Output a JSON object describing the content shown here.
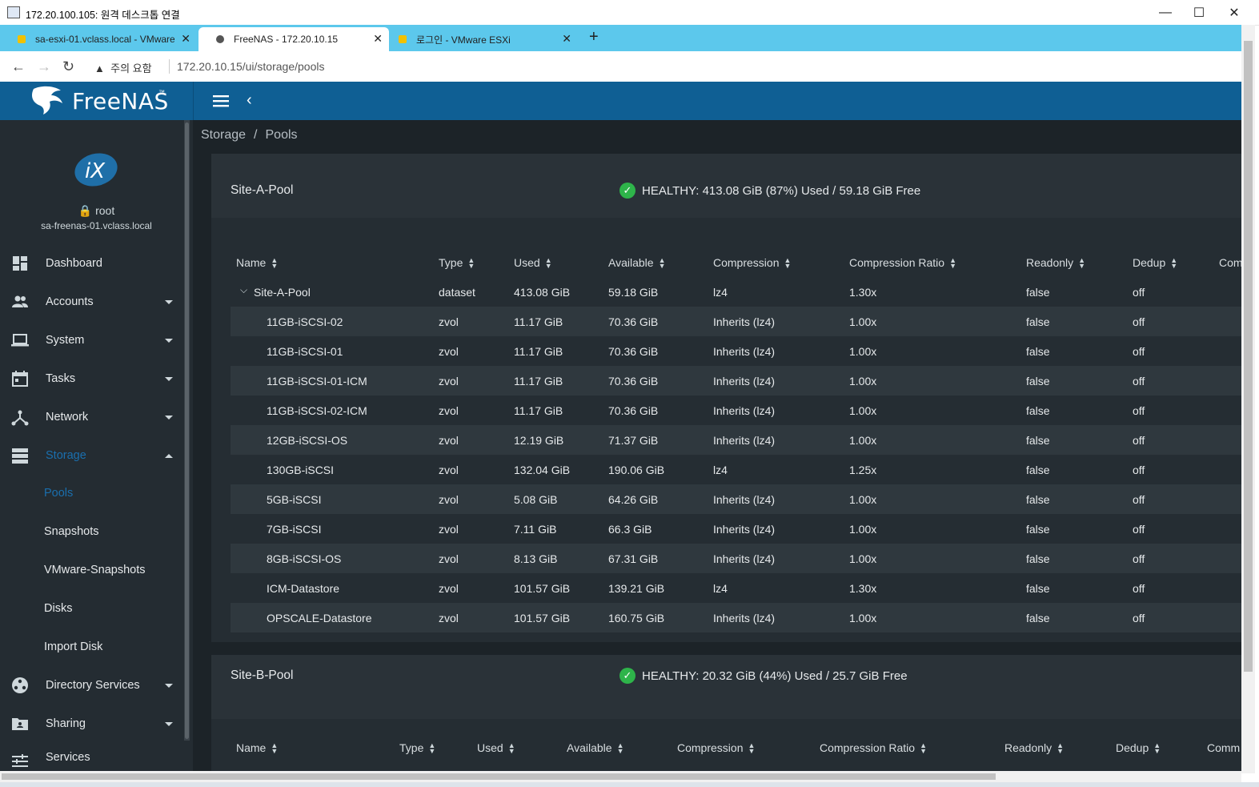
{
  "rdp": {
    "title": "172.20.100.105: 원격 데스크톱 연결"
  },
  "tabs": [
    {
      "label": "sa-esxi-01.vclass.local - VMware",
      "active": false
    },
    {
      "label": "FreeNAS - 172.20.10.15",
      "active": true
    },
    {
      "label": "로그인 - VMware ESXi",
      "active": false
    }
  ],
  "address": {
    "warning": "주의 요함",
    "url": "172.20.10.15/ui/storage/pools"
  },
  "header": {
    "logo": "FreeNAS",
    "logo_tm": "™"
  },
  "user": {
    "name": "root",
    "host": "sa-freenas-01.vclass.local"
  },
  "sidebar": {
    "items": [
      {
        "label": "Dashboard",
        "icon": "dashboard-icon"
      },
      {
        "label": "Accounts",
        "icon": "people-icon"
      },
      {
        "label": "System",
        "icon": "laptop-icon"
      },
      {
        "label": "Tasks",
        "icon": "calendar-icon"
      },
      {
        "label": "Network",
        "icon": "network-icon"
      },
      {
        "label": "Storage",
        "icon": "storage-icon"
      },
      {
        "label": "Directory Services",
        "icon": "directory-icon"
      },
      {
        "label": "Sharing",
        "icon": "folder-share-icon"
      },
      {
        "label": "Services",
        "icon": "tune-icon"
      }
    ],
    "storage_sub": [
      "Pools",
      "Snapshots",
      "VMware-Snapshots",
      "Disks",
      "Import Disk"
    ]
  },
  "breadcrumb": {
    "parent": "Storage",
    "sep": "/",
    "current": "Pools"
  },
  "pools": [
    {
      "name": "Site-A-Pool",
      "status": "HEALTHY: 413.08 GiB (87%) Used / 59.18 GiB Free",
      "columns": [
        "Name",
        "Type",
        "Used",
        "Available",
        "Compression",
        "Compression Ratio",
        "Readonly",
        "Dedup",
        "Com"
      ],
      "rows": [
        [
          "Site-A-Pool",
          "dataset",
          "413.08 GiB",
          "59.18 GiB",
          "lz4",
          "1.30x",
          "false",
          "off"
        ],
        [
          "11GB-iSCSI-02",
          "zvol",
          "11.17 GiB",
          "70.36 GiB",
          "Inherits (lz4)",
          "1.00x",
          "false",
          "off"
        ],
        [
          "11GB-iSCSI-01",
          "zvol",
          "11.17 GiB",
          "70.36 GiB",
          "Inherits (lz4)",
          "1.00x",
          "false",
          "off"
        ],
        [
          "11GB-iSCSI-01-ICM",
          "zvol",
          "11.17 GiB",
          "70.36 GiB",
          "Inherits (lz4)",
          "1.00x",
          "false",
          "off"
        ],
        [
          "11GB-iSCSI-02-ICM",
          "zvol",
          "11.17 GiB",
          "70.36 GiB",
          "Inherits (lz4)",
          "1.00x",
          "false",
          "off"
        ],
        [
          "12GB-iSCSI-OS",
          "zvol",
          "12.19 GiB",
          "71.37 GiB",
          "Inherits (lz4)",
          "1.00x",
          "false",
          "off"
        ],
        [
          "130GB-iSCSI",
          "zvol",
          "132.04 GiB",
          "190.06 GiB",
          "lz4",
          "1.25x",
          "false",
          "off"
        ],
        [
          "5GB-iSCSI",
          "zvol",
          "5.08 GiB",
          "64.26 GiB",
          "Inherits (lz4)",
          "1.00x",
          "false",
          "off"
        ],
        [
          "7GB-iSCSI",
          "zvol",
          "7.11 GiB",
          "66.3 GiB",
          "Inherits (lz4)",
          "1.00x",
          "false",
          "off"
        ],
        [
          "8GB-iSCSI-OS",
          "zvol",
          "8.13 GiB",
          "67.31 GiB",
          "Inherits (lz4)",
          "1.00x",
          "false",
          "off"
        ],
        [
          "ICM-Datastore",
          "zvol",
          "101.57 GiB",
          "139.21 GiB",
          "lz4",
          "1.30x",
          "false",
          "off"
        ],
        [
          "OPSCALE-Datastore",
          "zvol",
          "101.57 GiB",
          "160.75 GiB",
          "Inherits (lz4)",
          "1.00x",
          "false",
          "off"
        ]
      ]
    },
    {
      "name": "Site-B-Pool",
      "status": "HEALTHY: 20.32 GiB (44%) Used / 25.7 GiB Free",
      "columns": [
        "Name",
        "Type",
        "Used",
        "Available",
        "Compression",
        "Compression Ratio",
        "Readonly",
        "Dedup",
        "Comm"
      ]
    }
  ],
  "colors": {
    "header": "#0f5f94",
    "sidebar": "#242c32",
    "accent": "#1a6fae",
    "healthy": "#2eb44a"
  }
}
